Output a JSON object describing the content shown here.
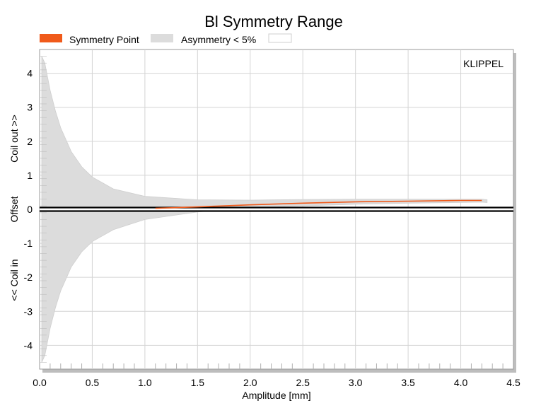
{
  "chart_data": {
    "type": "area",
    "title": "Bl Symmetry Range",
    "xlabel": "Amplitude [mm]",
    "ylabel_parts": [
      "<< Coil in",
      "Offset",
      "Coil out >>"
    ],
    "watermark": "KLIPPEL",
    "xlim": [
      0,
      4.5
    ],
    "ylim": [
      -4.7,
      4.7
    ],
    "x_ticks": [
      0.0,
      0.5,
      1.0,
      1.5,
      2.0,
      2.5,
      3.0,
      3.5,
      4.0,
      4.5
    ],
    "x_tick_labels": [
      "0.0",
      "0.5",
      "1.0",
      "1.5",
      "2.0",
      "2.5",
      "3.0",
      "3.5",
      "4.0",
      "4.5"
    ],
    "y_ticks": [
      4,
      3,
      2,
      1,
      0,
      -1,
      -2,
      -3,
      -4
    ],
    "y_tick_labels": [
      "4",
      "3",
      "2",
      "1",
      "0",
      "-1",
      "-2",
      "-3",
      "-4"
    ],
    "grid": true,
    "legend_position": "top-left",
    "legend": [
      {
        "label": "Symmetry Point",
        "color": "#f05a1a",
        "kind": "filled-box"
      },
      {
        "label": "Asymmetry < 5%",
        "color": "#dcdcdc",
        "kind": "filled-box"
      },
      {
        "label": "",
        "color": "#ffffff",
        "kind": "outline-box"
      }
    ],
    "symmetry_point": {
      "name": "Symmetry Point",
      "color": "#f05a1a",
      "x": [
        1.1,
        1.5,
        2.0,
        2.5,
        3.0,
        3.5,
        4.0,
        4.2
      ],
      "y": [
        0.03,
        0.07,
        0.13,
        0.18,
        0.22,
        0.24,
        0.26,
        0.26
      ]
    },
    "asymmetry_band": {
      "name": "Asymmetry < 5%",
      "color": "#dcdcdc",
      "x": [
        0.02,
        0.05,
        0.1,
        0.15,
        0.2,
        0.3,
        0.4,
        0.5,
        0.7,
        1.0,
        1.5,
        2.0,
        2.5,
        3.0,
        3.5,
        4.0,
        4.2,
        4.25
      ],
      "upper": [
        4.5,
        4.3,
        3.5,
        2.9,
        2.4,
        1.7,
        1.25,
        0.95,
        0.6,
        0.38,
        0.28,
        0.27,
        0.29,
        0.3,
        0.3,
        0.3,
        0.3,
        0.28
      ],
      "lower": [
        -4.5,
        -4.3,
        -3.5,
        -2.9,
        -2.4,
        -1.7,
        -1.25,
        -0.95,
        -0.6,
        -0.3,
        -0.08,
        0.05,
        0.1,
        0.15,
        0.18,
        0.2,
        0.21,
        0.2
      ]
    },
    "reference_line": {
      "y": 0,
      "color": "#000000"
    }
  }
}
